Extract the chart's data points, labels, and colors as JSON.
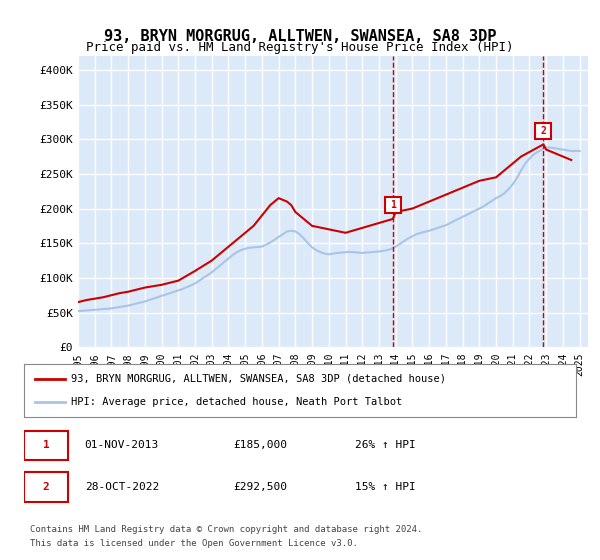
{
  "title": "93, BRYN MORGRUG, ALLTWEN, SWANSEA, SA8 3DP",
  "subtitle": "Price paid vs. HM Land Registry's House Price Index (HPI)",
  "ylabel": "",
  "xlim_start": 1995,
  "xlim_end": 2025.5,
  "ylim": [
    0,
    420000
  ],
  "yticks": [
    0,
    50000,
    100000,
    150000,
    200000,
    250000,
    300000,
    350000,
    400000
  ],
  "ytick_labels": [
    "£0",
    "£50K",
    "£100K",
    "£150K",
    "£200K",
    "£250K",
    "£300K",
    "£350K",
    "£400K"
  ],
  "xticks": [
    1995,
    1996,
    1997,
    1998,
    1999,
    2000,
    2001,
    2002,
    2003,
    2004,
    2005,
    2006,
    2007,
    2008,
    2009,
    2010,
    2011,
    2012,
    2013,
    2014,
    2015,
    2016,
    2017,
    2018,
    2019,
    2020,
    2021,
    2022,
    2023,
    2024,
    2025
  ],
  "background_color": "#dce9f8",
  "plot_bg_color": "#dce9f8",
  "grid_color": "#ffffff",
  "hpi_color": "#aac4e8",
  "price_color": "#cc0000",
  "vline_color": "#cc0000",
  "marker1_x": 2013.83,
  "marker1_y": 185000,
  "marker2_x": 2022.83,
  "marker2_y": 292500,
  "legend_label_red": "93, BRYN MORGRUG, ALLTWEN, SWANSEA, SA8 3DP (detached house)",
  "legend_label_blue": "HPI: Average price, detached house, Neath Port Talbot",
  "table_row1": "01-NOV-2013     £185,000     26% ↑ HPI",
  "table_row2": "28-OCT-2022     £292,500     15% ↑ HPI",
  "footer": "Contains HM Land Registry data © Crown copyright and database right 2024.\nThis data is licensed under the Open Government Licence v3.0.",
  "hpi_data_x": [
    1995,
    1995.25,
    1995.5,
    1995.75,
    1996,
    1996.25,
    1996.5,
    1996.75,
    1997,
    1997.25,
    1997.5,
    1997.75,
    1998,
    1998.25,
    1998.5,
    1998.75,
    1999,
    1999.25,
    1999.5,
    1999.75,
    2000,
    2000.25,
    2000.5,
    2000.75,
    2001,
    2001.25,
    2001.5,
    2001.75,
    2002,
    2002.25,
    2002.5,
    2002.75,
    2003,
    2003.25,
    2003.5,
    2003.75,
    2004,
    2004.25,
    2004.5,
    2004.75,
    2005,
    2005.25,
    2005.5,
    2005.75,
    2006,
    2006.25,
    2006.5,
    2006.75,
    2007,
    2007.25,
    2007.5,
    2007.75,
    2008,
    2008.25,
    2008.5,
    2008.75,
    2009,
    2009.25,
    2009.5,
    2009.75,
    2010,
    2010.25,
    2010.5,
    2010.75,
    2011,
    2011.25,
    2011.5,
    2011.75,
    2012,
    2012.25,
    2012.5,
    2012.75,
    2013,
    2013.25,
    2013.5,
    2013.75,
    2014,
    2014.25,
    2014.5,
    2014.75,
    2015,
    2015.25,
    2015.5,
    2015.75,
    2016,
    2016.25,
    2016.5,
    2016.75,
    2017,
    2017.25,
    2017.5,
    2017.75,
    2018,
    2018.25,
    2018.5,
    2018.75,
    2019,
    2019.25,
    2019.5,
    2019.75,
    2020,
    2020.25,
    2020.5,
    2020.75,
    2021,
    2021.25,
    2021.5,
    2021.75,
    2022,
    2022.25,
    2022.5,
    2022.75,
    2023,
    2023.25,
    2023.5,
    2023.75,
    2024,
    2024.25,
    2024.5,
    2024.75,
    2025
  ],
  "hpi_data_y": [
    52000,
    52500,
    53000,
    53500,
    54000,
    54500,
    55000,
    55500,
    56000,
    57000,
    58000,
    59000,
    60000,
    61500,
    63000,
    64500,
    66000,
    68000,
    70000,
    72000,
    74000,
    76000,
    78000,
    80000,
    82000,
    84000,
    86500,
    89000,
    92000,
    96000,
    100000,
    104000,
    108000,
    113000,
    118000,
    123000,
    128000,
    133000,
    137000,
    140000,
    142000,
    143500,
    144000,
    144500,
    145000,
    148000,
    151000,
    155000,
    159000,
    163000,
    167000,
    168000,
    167000,
    163000,
    157000,
    150000,
    144000,
    140000,
    137000,
    135000,
    134000,
    135000,
    136000,
    136500,
    137000,
    137500,
    137000,
    136500,
    136000,
    136500,
    137000,
    137500,
    138000,
    139000,
    140000,
    142000,
    145000,
    149000,
    153000,
    157000,
    160000,
    163000,
    165000,
    166500,
    168000,
    170000,
    172000,
    174000,
    176000,
    179000,
    182000,
    185000,
    188000,
    191000,
    194000,
    197000,
    200000,
    203000,
    207000,
    211000,
    215000,
    218000,
    222000,
    228000,
    235000,
    244000,
    255000,
    265000,
    272000,
    278000,
    282000,
    285000,
    288000,
    288000,
    287000,
    286000,
    285000,
    284000,
    283000,
    283000,
    283000
  ],
  "price_data_x": [
    1995,
    1995.5,
    1996,
    1996.5,
    1997,
    1997.5,
    1998,
    1998.5,
    1999,
    1999.5,
    2000,
    2000.5,
    2001,
    2002,
    2003,
    2004,
    2005,
    2005.5,
    2006,
    2006.5,
    2007,
    2007.5,
    2007.75,
    2008,
    2009,
    2010,
    2011,
    2013.83,
    2014,
    2015,
    2016,
    2017,
    2018,
    2019,
    2020,
    2020.5,
    2021,
    2021.5,
    2022.83,
    2023,
    2023.5,
    2024,
    2024.5
  ],
  "price_data_y": [
    65000,
    68000,
    70000,
    72000,
    75000,
    78000,
    80000,
    83000,
    86000,
    88000,
    90000,
    93000,
    96000,
    110000,
    125000,
    145000,
    165000,
    175000,
    190000,
    205000,
    215000,
    210000,
    205000,
    195000,
    175000,
    170000,
    165000,
    185000,
    195000,
    200000,
    210000,
    220000,
    230000,
    240000,
    245000,
    255000,
    265000,
    275000,
    292500,
    285000,
    280000,
    275000,
    270000
  ]
}
